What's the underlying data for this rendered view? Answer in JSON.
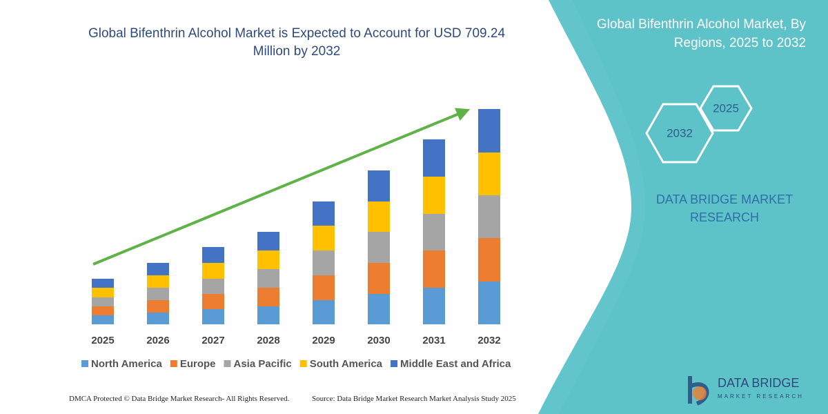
{
  "chart_data": {
    "type": "stacked-bar",
    "title": "Global Bifenthrin Alcohol Market is Expected to Account for USD 709.24 Million by 2032",
    "categories": [
      "2025",
      "2026",
      "2027",
      "2028",
      "2029",
      "2030",
      "2031",
      "2032"
    ],
    "series": [
      {
        "name": "North America",
        "color": "#5b9bd5",
        "values": [
          13,
          17,
          22,
          26,
          35,
          44,
          53,
          62
        ]
      },
      {
        "name": "Europe",
        "color": "#ed7d31",
        "values": [
          13,
          18,
          22,
          27,
          36,
          45,
          54,
          63
        ]
      },
      {
        "name": "Asia Pacific",
        "color": "#a5a5a5",
        "values": [
          13,
          18,
          22,
          27,
          36,
          45,
          53,
          62
        ]
      },
      {
        "name": "South America",
        "color": "#ffc000",
        "values": [
          14,
          18,
          23,
          27,
          36,
          44,
          54,
          62
        ]
      },
      {
        "name": "Middle East and Africa",
        "color": "#4472c4",
        "values": [
          13,
          18,
          23,
          27,
          35,
          45,
          54,
          63
        ]
      }
    ],
    "ylim": [
      0,
      312
    ]
  },
  "panel": {
    "title": "Global Bifenthrin Alcohol Market, By Regions, 2025 to 2032",
    "hexagons": [
      "2025",
      "2032"
    ],
    "brand": "DATA BRIDGE MARKET RESEARCH"
  },
  "logo": {
    "name": "DATA BRIDGE",
    "tagline": "MARKET RESEARCH"
  },
  "footer": {
    "copyright": "DMCA Protected © Data Bridge Market Research-  All Rights Reserved.",
    "source": "Source: Data Bridge Market Research  Market Analysis Study 2025"
  }
}
